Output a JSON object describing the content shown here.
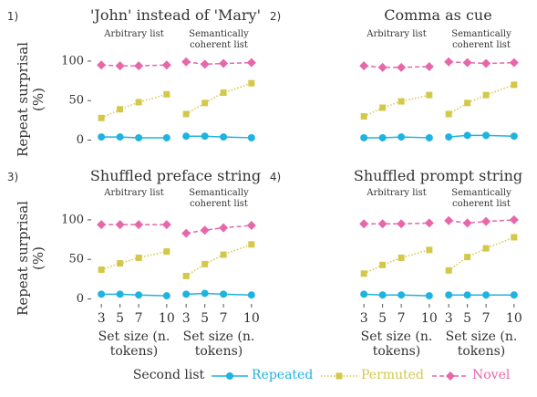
{
  "chart_data": [
    {
      "type": "line",
      "label": "1)",
      "title": "'John' instead of 'Mary'",
      "ylabel": "Repeat surprisal (%)",
      "x": [
        3,
        5,
        7,
        10
      ],
      "xlim": [
        2.3,
        10.7
      ],
      "ylim": [
        -4,
        108
      ],
      "yticks": [
        0,
        50,
        100
      ],
      "facets": [
        {
          "title": "Arbitrary list",
          "series": [
            {
              "name": "Repeated",
              "color": "#1fb3e0",
              "marker": "circle",
              "dash": "solid",
              "values": [
                4,
                4,
                3,
                3
              ]
            },
            {
              "name": "Permuted",
              "color": "#d4c84a",
              "marker": "square",
              "dash": "dotted",
              "values": [
                28,
                39,
                48,
                58
              ]
            },
            {
              "name": "Novel",
              "color": "#e667aa",
              "marker": "diamond",
              "dash": "dashed",
              "values": [
                95,
                94,
                94,
                95
              ]
            }
          ]
        },
        {
          "title": "Semantically coherent list",
          "series": [
            {
              "name": "Repeated",
              "color": "#1fb3e0",
              "marker": "circle",
              "dash": "solid",
              "values": [
                5,
                5,
                4,
                3
              ]
            },
            {
              "name": "Permuted",
              "color": "#d4c84a",
              "marker": "square",
              "dash": "dotted",
              "values": [
                33,
                47,
                60,
                72
              ]
            },
            {
              "name": "Novel",
              "color": "#e667aa",
              "marker": "diamond",
              "dash": "dashed",
              "values": [
                99,
                96,
                97,
                98
              ]
            }
          ]
        }
      ]
    },
    {
      "type": "line",
      "label": "2)",
      "title": "Comma as cue",
      "x": [
        3,
        5,
        7,
        10
      ],
      "xlim": [
        2.3,
        10.7
      ],
      "ylim": [
        -4,
        108
      ],
      "facets": [
        {
          "title": "Arbitrary list",
          "series": [
            {
              "name": "Repeated",
              "color": "#1fb3e0",
              "marker": "circle",
              "dash": "solid",
              "values": [
                3,
                3,
                4,
                3
              ]
            },
            {
              "name": "Permuted",
              "color": "#d4c84a",
              "marker": "square",
              "dash": "dotted",
              "values": [
                30,
                41,
                49,
                57
              ]
            },
            {
              "name": "Novel",
              "color": "#e667aa",
              "marker": "diamond",
              "dash": "dashed",
              "values": [
                94,
                92,
                92,
                93
              ]
            }
          ]
        },
        {
          "title": "Semantically coherent list",
          "series": [
            {
              "name": "Repeated",
              "color": "#1fb3e0",
              "marker": "circle",
              "dash": "solid",
              "values": [
                4,
                6,
                6,
                5
              ]
            },
            {
              "name": "Permuted",
              "color": "#d4c84a",
              "marker": "square",
              "dash": "dotted",
              "values": [
                33,
                47,
                57,
                70
              ]
            },
            {
              "name": "Novel",
              "color": "#e667aa",
              "marker": "diamond",
              "dash": "dashed",
              "values": [
                99,
                98,
                97,
                98
              ]
            }
          ]
        }
      ]
    },
    {
      "type": "line",
      "label": "3)",
      "title": "Shuffled preface string",
      "ylabel": "Repeat surprisal (%)",
      "xlabel": "Set size (n. tokens)",
      "x": [
        3,
        5,
        7,
        10
      ],
      "xlim": [
        2.3,
        10.7
      ],
      "xticks": [
        3,
        5,
        7,
        10
      ],
      "ylim": [
        -4,
        108
      ],
      "yticks": [
        0,
        50,
        100
      ],
      "facets": [
        {
          "title": "Arbitrary list",
          "series": [
            {
              "name": "Repeated",
              "color": "#1fb3e0",
              "marker": "circle",
              "dash": "solid",
              "values": [
                6,
                6,
                5,
                4
              ]
            },
            {
              "name": "Permuted",
              "color": "#d4c84a",
              "marker": "square",
              "dash": "dotted",
              "values": [
                37,
                45,
                52,
                60
              ]
            },
            {
              "name": "Novel",
              "color": "#e667aa",
              "marker": "diamond",
              "dash": "dashed",
              "values": [
                94,
                94,
                94,
                94
              ]
            }
          ]
        },
        {
          "title": "Semantically coherent list",
          "series": [
            {
              "name": "Repeated",
              "color": "#1fb3e0",
              "marker": "circle",
              "dash": "solid",
              "values": [
                6,
                7,
                6,
                5
              ]
            },
            {
              "name": "Permuted",
              "color": "#d4c84a",
              "marker": "square",
              "dash": "dotted",
              "values": [
                29,
                44,
                56,
                69
              ]
            },
            {
              "name": "Novel",
              "color": "#e667aa",
              "marker": "diamond",
              "dash": "dashed",
              "values": [
                83,
                87,
                90,
                93
              ]
            }
          ]
        }
      ]
    },
    {
      "type": "line",
      "label": "4)",
      "title": "Shuffled prompt string",
      "xlabel": "Set size (n. tokens)",
      "x": [
        3,
        5,
        7,
        10
      ],
      "xlim": [
        2.3,
        10.7
      ],
      "xticks": [
        3,
        5,
        7,
        10
      ],
      "ylim": [
        -4,
        108
      ],
      "facets": [
        {
          "title": "Arbitrary list",
          "series": [
            {
              "name": "Repeated",
              "color": "#1fb3e0",
              "marker": "circle",
              "dash": "solid",
              "values": [
                6,
                5,
                5,
                4
              ]
            },
            {
              "name": "Permuted",
              "color": "#d4c84a",
              "marker": "square",
              "dash": "dotted",
              "values": [
                32,
                43,
                52,
                62
              ]
            },
            {
              "name": "Novel",
              "color": "#e667aa",
              "marker": "diamond",
              "dash": "dashed",
              "values": [
                95,
                95,
                95,
                96
              ]
            }
          ]
        },
        {
          "title": "Semantically coherent list",
          "series": [
            {
              "name": "Repeated",
              "color": "#1fb3e0",
              "marker": "circle",
              "dash": "solid",
              "values": [
                5,
                5,
                5,
                5
              ]
            },
            {
              "name": "Permuted",
              "color": "#d4c84a",
              "marker": "square",
              "dash": "dotted",
              "values": [
                36,
                53,
                64,
                78
              ]
            },
            {
              "name": "Novel",
              "color": "#e667aa",
              "marker": "diamond",
              "dash": "dashed",
              "values": [
                99,
                96,
                98,
                100
              ]
            }
          ]
        }
      ]
    }
  ],
  "legend": {
    "title": "Second list"
  }
}
